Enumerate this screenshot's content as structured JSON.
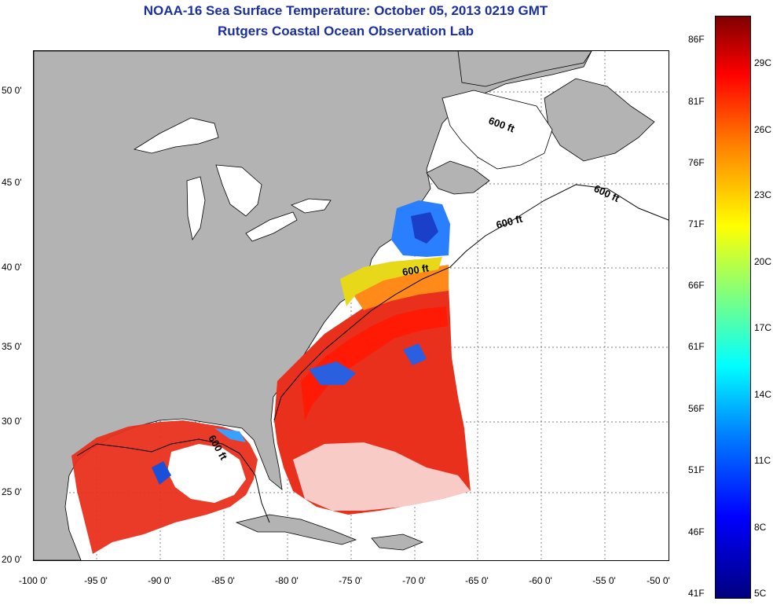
{
  "title": {
    "line1": "NOAA-16 Sea Surface Temperature:  October 05, 2013 0219 GMT",
    "line2": "Rutgers Coastal Ocean Observation Lab"
  },
  "map": {
    "lat_labels": [
      "50 0'",
      "45 0'",
      "40 0'",
      "35 0'",
      "30 0'",
      "25 0'",
      "20 0'"
    ],
    "lon_labels": [
      "-100 0'",
      "-95 0'",
      "-90 0'",
      "-85 0'",
      "-80 0'",
      "-75 0'",
      "-70 0'",
      "-65 0'",
      "-60 0'",
      "-55 0'",
      "-50 0'"
    ],
    "contour_label": "600 ft",
    "colors": {
      "land": "#b3b3b3",
      "no_data": "#ffffff",
      "warm": "#e8301c",
      "gulf_stream": "#ff2a0a",
      "shelf_yellow": "#e8d81a",
      "cool_blue": "#1a4fd8"
    }
  },
  "colorbar": {
    "f_labels": [
      "86F",
      "81F",
      "76F",
      "71F",
      "66F",
      "61F",
      "56F",
      "51F",
      "46F",
      "41F"
    ],
    "c_labels": [
      "29C",
      "26C",
      "23C",
      "20C",
      "17C",
      "14C",
      "11C",
      "8C",
      "5C"
    ],
    "scale_colors": [
      "#00007f",
      "#0000ff",
      "#007fff",
      "#00ffff",
      "#7fff7f",
      "#ffff00",
      "#ff7f00",
      "#ff0000",
      "#7f0000"
    ]
  }
}
